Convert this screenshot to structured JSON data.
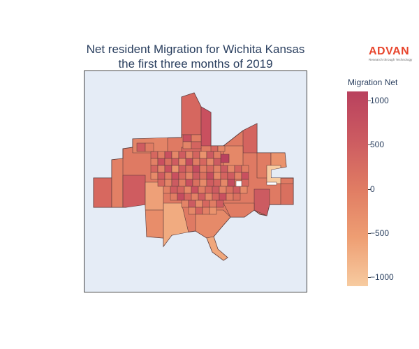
{
  "title": {
    "line1": "Net resident Migration for Wichita Kansas",
    "line2": "the first three months of 2019"
  },
  "logo": {
    "word": "ADVAN",
    "tagline": "Research through Technology",
    "color": "#e8452c"
  },
  "map": {
    "background": "#e5ecf6",
    "border_color": "#444444",
    "district_outline": "#5a3a3a"
  },
  "colorbar": {
    "title": "Migration Net",
    "range": [
      -1100,
      1100
    ],
    "colors": [
      "#f7cba0",
      "#ee9e73",
      "#e07c63",
      "#cc5b61",
      "#b9415e"
    ],
    "ticks": [
      {
        "value": 1000,
        "label": "1000"
      },
      {
        "value": 500,
        "label": "500"
      },
      {
        "value": 0,
        "label": "0"
      },
      {
        "value": -500,
        "label": "−500"
      },
      {
        "value": -1000,
        "label": "−1000"
      }
    ]
  }
}
